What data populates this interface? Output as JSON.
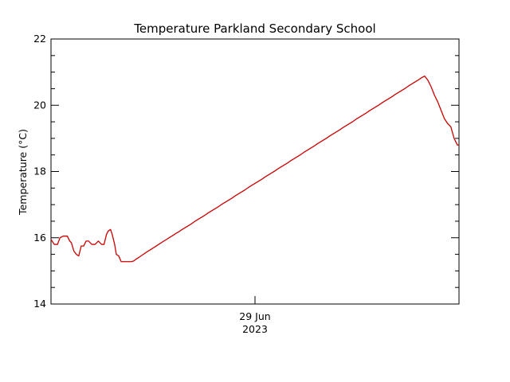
{
  "chart_data": {
    "type": "line",
    "title": "Temperature Parkland Secondary School",
    "ylabel": "Temperature (°C)",
    "xlabel": "",
    "x_tick_label": [
      "29 Jun",
      "2023"
    ],
    "ylim": [
      14,
      22
    ],
    "y_ticks": [
      "14",
      "16",
      "18",
      "20",
      "22"
    ],
    "grid": false,
    "series": [
      {
        "name": "",
        "color": "#cc0000",
        "x": [
          0.0,
          0.008,
          0.016,
          0.022,
          0.03,
          0.04,
          0.046,
          0.05,
          0.056,
          0.062,
          0.068,
          0.074,
          0.08,
          0.086,
          0.092,
          0.1,
          0.108,
          0.116,
          0.124,
          0.13,
          0.136,
          0.14,
          0.146,
          0.15,
          0.156,
          0.16,
          0.166,
          0.172,
          0.178,
          0.18,
          0.183,
          0.187,
          0.192,
          0.197,
          0.203,
          0.207,
          0.212,
          0.218,
          0.224,
          0.23,
          0.236,
          0.244,
          0.254,
          0.264,
          0.274,
          0.282,
          0.292,
          0.3,
          0.306,
          0.312,
          0.32,
          0.328,
          0.336,
          0.344,
          0.352,
          0.36,
          0.368,
          0.376,
          0.384,
          0.392,
          0.4,
          0.408,
          0.414,
          0.42,
          0.428,
          0.436,
          0.444,
          0.452,
          0.46,
          0.468,
          0.476,
          0.484,
          0.492,
          0.5,
          0.508,
          0.516,
          0.524,
          0.532,
          0.54,
          0.548,
          0.556,
          0.564,
          0.572,
          0.58,
          0.588,
          0.596,
          0.604,
          0.612,
          0.62,
          0.628,
          0.636,
          0.644,
          0.652,
          0.66,
          0.668,
          0.676,
          0.684,
          0.692,
          0.7,
          0.708,
          0.716,
          0.724,
          0.732,
          0.74,
          0.748,
          0.756,
          0.764,
          0.772,
          0.78,
          0.788,
          0.796,
          0.804,
          0.812,
          0.82,
          0.828,
          0.836,
          0.844,
          0.852,
          0.86,
          0.868,
          0.876,
          0.884,
          0.892,
          0.9,
          0.908,
          0.916,
          0.924,
          0.932,
          0.94,
          0.948,
          0.956,
          0.964,
          0.972,
          0.98,
          0.988,
          0.996,
          1.0
        ],
        "y": [
          15.95,
          15.8,
          15.8,
          16.0,
          16.05,
          16.05,
          15.9,
          15.85,
          15.6,
          15.5,
          15.45,
          15.75,
          15.75,
          15.9,
          15.9,
          15.8,
          15.8,
          15.9,
          15.8,
          15.8,
          16.1,
          16.2,
          16.25,
          16.1,
          15.8,
          15.5,
          15.45,
          15.28,
          15.28,
          15.28,
          15.28,
          15.28,
          15.28,
          15.28,
          15.3,
          15.34,
          15.38,
          15.43,
          15.48,
          15.53,
          15.58,
          15.64,
          15.72,
          15.8,
          15.88,
          15.94,
          16.02,
          16.08,
          16.13,
          16.17,
          16.24,
          16.3,
          16.36,
          16.42,
          16.49,
          16.55,
          16.61,
          16.67,
          16.74,
          16.8,
          16.86,
          16.92,
          16.97,
          17.02,
          17.08,
          17.14,
          17.2,
          17.27,
          17.33,
          17.39,
          17.45,
          17.52,
          17.58,
          17.64,
          17.7,
          17.76,
          17.83,
          17.89,
          17.95,
          18.01,
          18.08,
          18.14,
          18.2,
          18.26,
          18.33,
          18.39,
          18.45,
          18.51,
          18.58,
          18.64,
          18.7,
          18.76,
          18.83,
          18.89,
          18.95,
          19.01,
          19.08,
          19.14,
          19.2,
          19.26,
          19.33,
          19.39,
          19.45,
          19.51,
          19.58,
          19.64,
          19.7,
          19.76,
          19.83,
          19.89,
          19.95,
          20.01,
          20.08,
          20.14,
          20.2,
          20.26,
          20.33,
          20.39,
          20.45,
          20.51,
          20.58,
          20.64,
          20.7,
          20.76,
          20.83,
          20.88,
          20.75,
          20.55,
          20.3,
          20.1,
          19.85,
          19.6,
          19.45,
          19.35,
          19.0,
          18.8,
          18.8
        ]
      }
    ]
  }
}
